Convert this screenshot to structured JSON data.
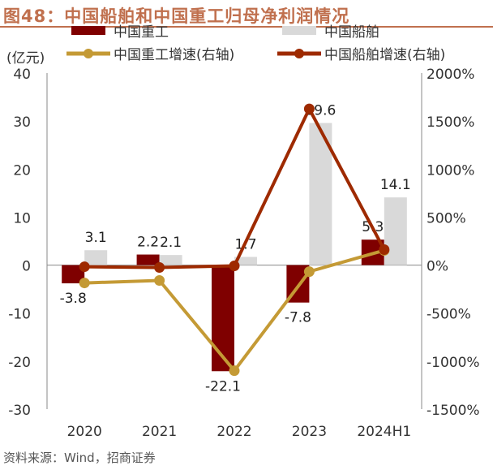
{
  "title": "图48：中国船舶和中国重工归母净利润情况",
  "source": "资料来源：Wind，招商证券",
  "chart_data": {
    "type": "bar",
    "categories": [
      "2020",
      "2021",
      "2022",
      "2023",
      "2024H1"
    ],
    "ylabel": "(亿元)",
    "ylim": [
      -30,
      40
    ],
    "yticks": [
      -30,
      -20,
      -10,
      0,
      10,
      20,
      30,
      40
    ],
    "y2lim": [
      -1500,
      2000
    ],
    "y2ticks": [
      "-1500%",
      "-1000%",
      "-500%",
      "0%",
      "500%",
      "1000%",
      "1500%",
      "2000%"
    ],
    "legend_placement": "top",
    "grid": false,
    "series": [
      {
        "name": "中国重工",
        "kind": "bar",
        "axis": "left",
        "color": "#7F0000",
        "values": [
          -3.8,
          2.2,
          -22.1,
          -7.8,
          5.3
        ],
        "labels": [
          "-3.8",
          "2.2",
          "-22.1",
          "-7.8",
          "5.3"
        ]
      },
      {
        "name": "中国船舶",
        "kind": "bar",
        "axis": "left",
        "color": "#D9D9D9",
        "values": [
          3.1,
          2.1,
          1.7,
          29.6,
          14.1
        ],
        "labels": [
          "3.1",
          "2.1",
          "1.7",
          "29.6",
          "14.1"
        ]
      },
      {
        "name": "中国重工增速(右轴)",
        "kind": "line",
        "axis": "right",
        "unit": "%",
        "color": "#C49A35",
        "values": [
          -186,
          -160,
          -1100,
          -68,
          153
        ]
      },
      {
        "name": "中国船舶增速(右轴)",
        "kind": "line",
        "axis": "right",
        "unit": "%",
        "color": "#9E2A00",
        "values": [
          -17,
          -25,
          -8,
          1627,
          161
        ]
      }
    ]
  }
}
